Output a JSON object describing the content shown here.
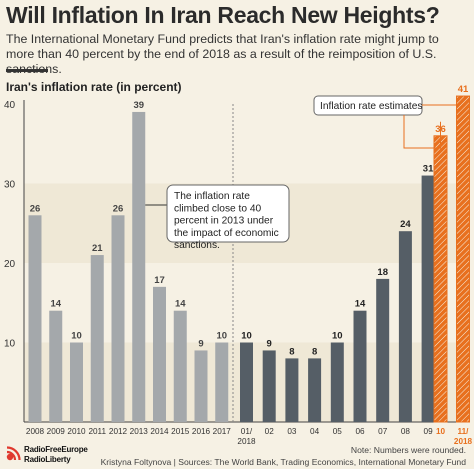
{
  "header": {
    "title": "Will Inflation In Iran Reach New Heights?",
    "subtitle": "The International Monetary Fund predicts that Iran's inflation rate might jump to more than 40 percent by the end of 2018 as a result of the reimposition of U.S. sanctions."
  },
  "colors": {
    "background": "#f6f1e4",
    "yearly_bar": "#a4a8ab",
    "monthly_bar": "#555e66",
    "estimate_bar": "#e8701e",
    "annotation_line": "#e8701e"
  },
  "chart_data": {
    "type": "bar",
    "title": "Iran's inflation rate (in percent)",
    "ylim": [
      0,
      40
    ],
    "yticks": [
      10,
      20,
      30,
      40
    ],
    "grid": "alternating horizontal bands",
    "series": [
      {
        "kind": "yearly",
        "categories": [
          "2008",
          "2009",
          "2010",
          "2011",
          "2012",
          "2013",
          "2014",
          "2015",
          "2016",
          "2017"
        ],
        "values": [
          26,
          14,
          10,
          21,
          26,
          39,
          17,
          14,
          9,
          10
        ]
      },
      {
        "kind": "monthly",
        "categories": [
          "01/\n2018",
          "02",
          "03",
          "04",
          "05",
          "06",
          "07",
          "08",
          "09"
        ],
        "values": [
          10,
          9,
          8,
          8,
          10,
          14,
          18,
          24,
          31
        ]
      },
      {
        "kind": "estimate",
        "categories": [
          "10",
          "11/\n2018"
        ],
        "values": [
          36,
          41
        ]
      }
    ],
    "annotations": [
      {
        "text": "The inflation rate climbed close to 40 percent in 2013 under the impact of economic sanctions.",
        "target": "2013"
      },
      {
        "text": "Inflation rate estimates",
        "target": "estimates"
      }
    ]
  },
  "footer": {
    "note": "Note: Numbers were rounded.",
    "sources": "Kristyna Foltynova | Sources: The World Bank, Trading Economics, International Monetary Fund",
    "logo_text": "RadioFreeEurope RadioLiberty"
  }
}
